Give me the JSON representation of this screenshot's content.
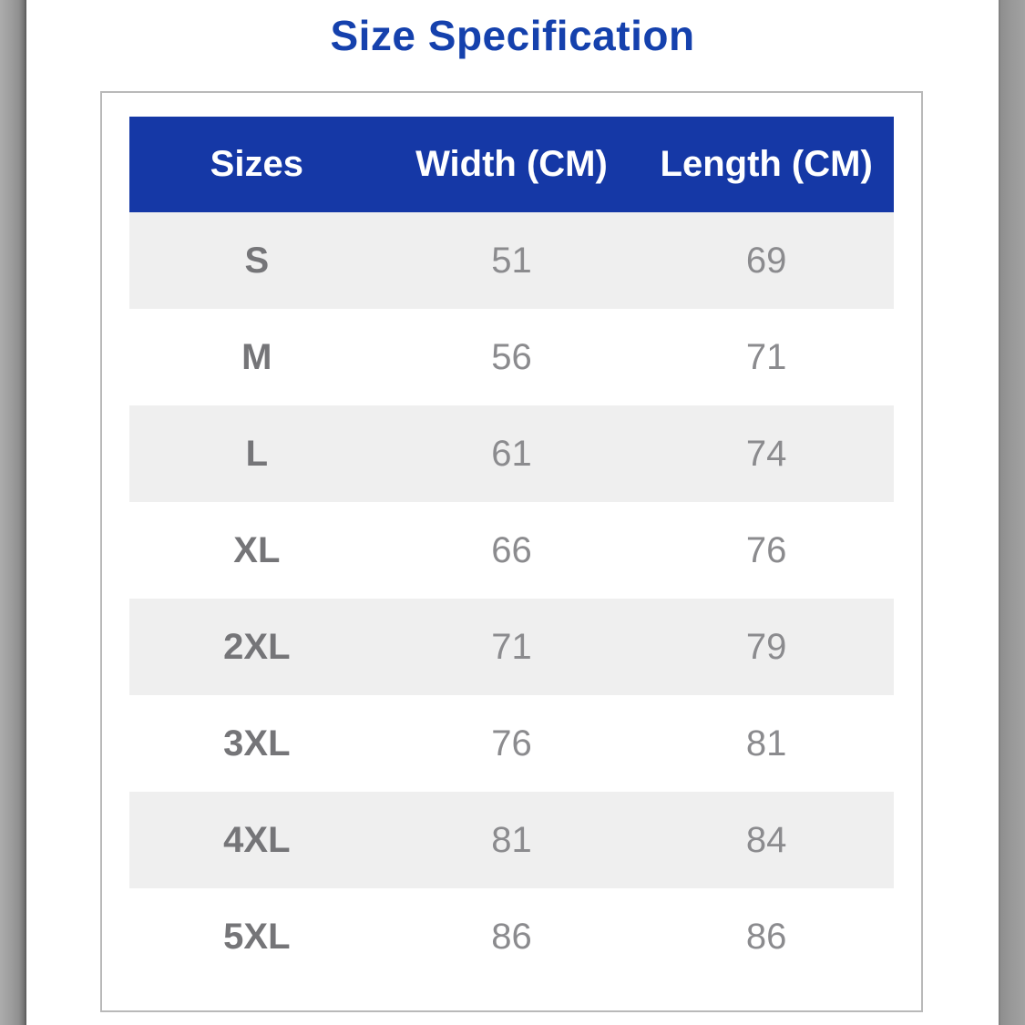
{
  "page": {
    "title": "Size Specification"
  },
  "size_table": {
    "columns": [
      "Sizes",
      "Width (CM)",
      "Length (CM)"
    ],
    "rows": [
      {
        "size": "S",
        "width": "51",
        "length": "69"
      },
      {
        "size": "M",
        "width": "56",
        "length": "71"
      },
      {
        "size": "L",
        "width": "61",
        "length": "74"
      },
      {
        "size": "XL",
        "width": "66",
        "length": "76"
      },
      {
        "size": "2XL",
        "width": "71",
        "length": "79"
      },
      {
        "size": "3XL",
        "width": "76",
        "length": "81"
      },
      {
        "size": "4XL",
        "width": "81",
        "length": "84"
      },
      {
        "size": "5XL",
        "width": "86",
        "length": "86"
      }
    ]
  },
  "colors": {
    "title_text": "#1541ad",
    "header_bg": "#1538a6",
    "header_text": "#ffffff",
    "row_alt_bg": "#efefef",
    "size_label_text": "#757578",
    "value_text": "#8b8b8e",
    "card_border": "#b9b9b9"
  }
}
